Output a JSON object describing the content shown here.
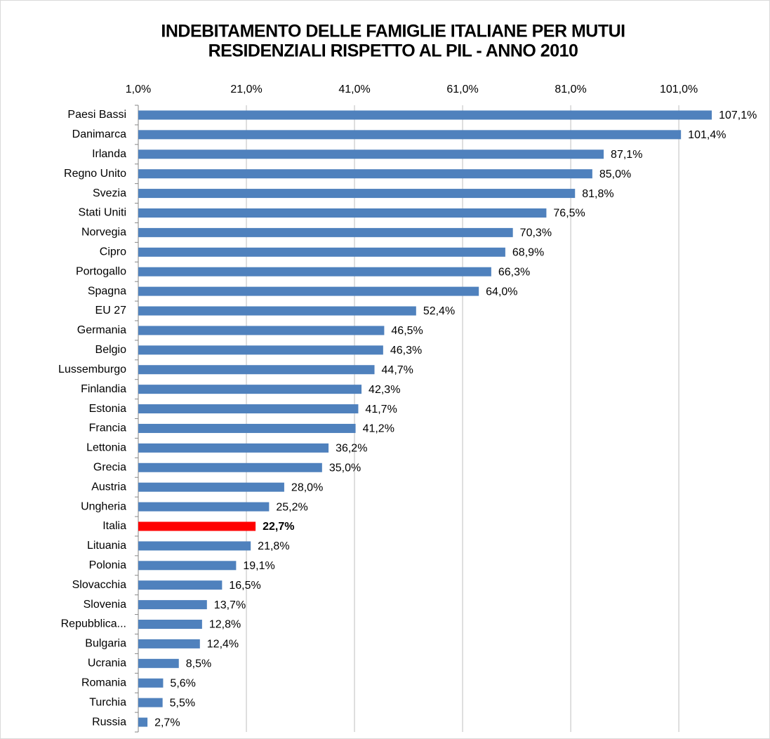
{
  "chart_data": {
    "type": "barh",
    "title": [
      "INDEBITAMENTO DELLE FAMIGLIE ITALIANE PER MUTUI",
      "RESIDENZIALI RISPETTO AL PIL - ANNO 2010"
    ],
    "categories": [
      "Paesi Bassi",
      "Danimarca",
      "Irlanda",
      "Regno Unito",
      "Svezia",
      "Stati Uniti",
      "Norvegia",
      "Cipro",
      "Portogallo",
      "Spagna",
      "EU 27",
      "Germania",
      "Belgio",
      "Lussemburgo",
      "Finlandia",
      "Estonia",
      "Francia",
      "Lettonia",
      "Grecia",
      "Austria",
      "Ungheria",
      "Italia",
      "Lituania",
      "Polonia",
      "Slovacchia",
      "Slovenia",
      "Repubblica...",
      "Bulgaria",
      "Ucrania",
      "Romania",
      "Turchia",
      "Russia"
    ],
    "values": [
      107.1,
      101.4,
      87.1,
      85.0,
      81.8,
      76.5,
      70.3,
      68.9,
      66.3,
      64.0,
      52.4,
      46.5,
      46.3,
      44.7,
      42.3,
      41.7,
      41.2,
      36.2,
      35.0,
      28.0,
      25.2,
      22.7,
      21.8,
      19.1,
      16.5,
      13.7,
      12.8,
      12.4,
      8.5,
      5.6,
      5.5,
      2.7
    ],
    "value_labels": [
      "107,1%",
      "101,4%",
      "87,1%",
      "85,0%",
      "81,8%",
      "76,5%",
      "70,3%",
      "68,9%",
      "66,3%",
      "64,0%",
      "52,4%",
      "46,5%",
      "46,3%",
      "44,7%",
      "42,3%",
      "41,7%",
      "41,2%",
      "36,2%",
      "35,0%",
      "28,0%",
      "25,2%",
      "22,7%",
      "21,8%",
      "19,1%",
      "16,5%",
      "13,7%",
      "12,8%",
      "12,4%",
      "8,5%",
      "5,6%",
      "5,5%",
      "2,7%"
    ],
    "color": "#4f81bd",
    "colors": [
      "#4f81bd",
      "#4f81bd",
      "#4f81bd",
      "#4f81bd",
      "#4f81bd",
      "#4f81bd",
      "#4f81bd",
      "#4f81bd",
      "#4f81bd",
      "#4f81bd",
      "#4f81bd",
      "#4f81bd",
      "#4f81bd",
      "#4f81bd",
      "#4f81bd",
      "#4f81bd",
      "#4f81bd",
      "#4f81bd",
      "#4f81bd",
      "#4f81bd",
      "#4f81bd",
      "#ff0000",
      "#4f81bd",
      "#4f81bd",
      "#4f81bd",
      "#4f81bd",
      "#4f81bd",
      "#4f81bd",
      "#4f81bd",
      "#4f81bd",
      "#4f81bd",
      "#4f81bd"
    ],
    "xlim": [
      1,
      108
    ],
    "xticks": [
      {
        "value": 1,
        "label": "1,0%"
      },
      {
        "value": 21,
        "label": "21,0%"
      },
      {
        "value": 41,
        "label": "41,0%"
      },
      {
        "value": 61,
        "label": "61,0%"
      },
      {
        "value": 81,
        "label": "81,0%"
      },
      {
        "value": 101,
        "label": "101,0%"
      }
    ],
    "grid": true
  }
}
